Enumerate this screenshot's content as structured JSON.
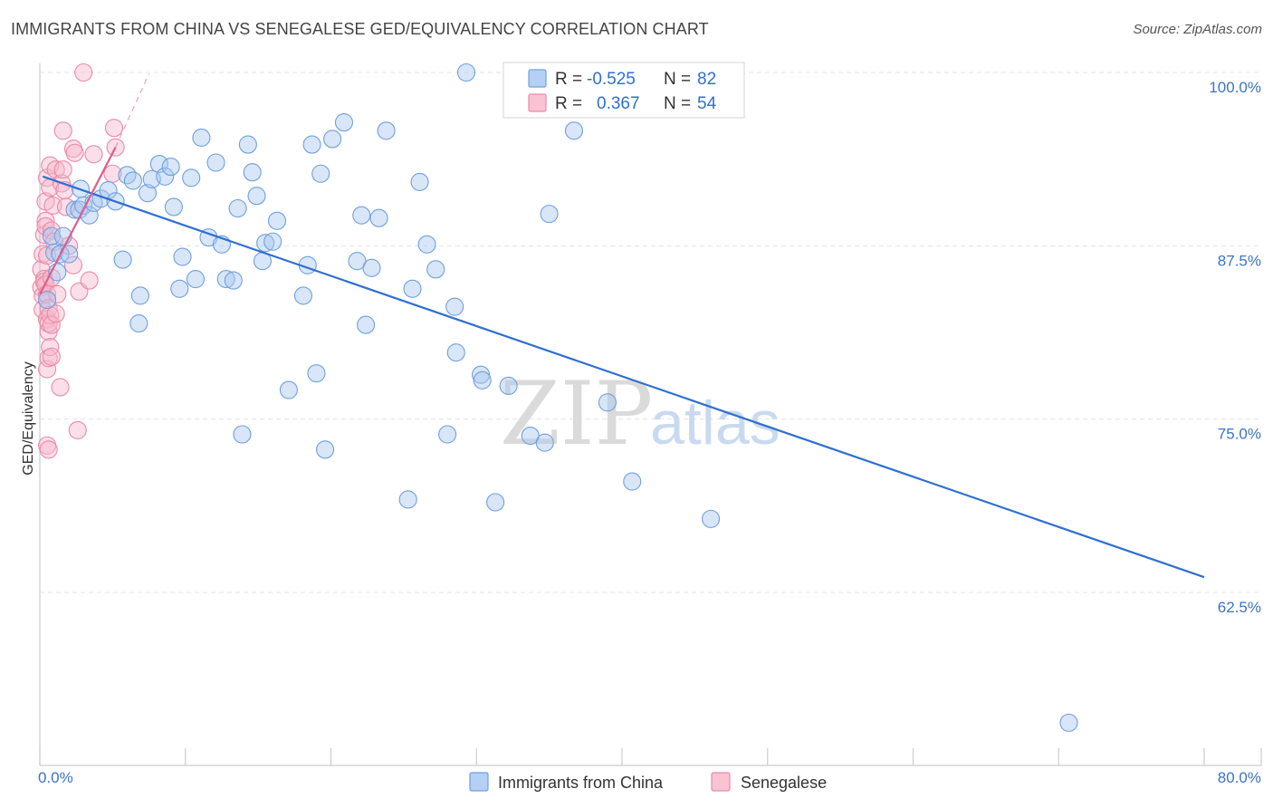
{
  "title": "IMMIGRANTS FROM CHINA VS SENEGALESE GED/EQUIVALENCY CORRELATION CHART",
  "source": "Source: ZipAtlas.com",
  "watermark": {
    "part1": "ZIP",
    "part2": "atlas"
  },
  "colors": {
    "blue_fill": "#a9c8ef",
    "blue_stroke": "#6f9fde",
    "blue_line": "#2f6fd1",
    "pink_fill": "#f6b8cb",
    "pink_stroke": "#e98aa8",
    "pink_line": "#e45b8a",
    "tick_text": "#3b73c8",
    "value_text": "#2f6fd1"
  },
  "legend": {
    "rows": [
      {
        "r_label": "R =",
        "r_value": "-0.525",
        "n_label": "N =",
        "n_value": "82",
        "series": "blue"
      },
      {
        "r_label": "R =",
        "r_value": "0.367",
        "n_label": "N =",
        "n_value": "54",
        "series": "pink"
      }
    ]
  },
  "chart_data": {
    "type": "scatter",
    "title": "IMMIGRANTS FROM CHINA VS SENEGALESE GED/EQUIVALENCY CORRELATION CHART",
    "xlabel": "",
    "ylabel": "GED/Equivalency",
    "xlim": [
      0,
      80
    ],
    "ylim": [
      52,
      101
    ],
    "x_tick_labels": [
      "0.0%",
      "80.0%"
    ],
    "y_ticks": [
      62.5,
      75.0,
      87.5,
      100.0
    ],
    "y_tick_labels": [
      "62.5%",
      "75.0%",
      "87.5%",
      "100.0%"
    ],
    "grid": true,
    "legend_position": "top-center",
    "series": [
      {
        "name": "Immigrants from China",
        "color": "#a9c8ef",
        "r": -0.525,
        "n": 82,
        "trend": {
          "x": [
            0.2,
            80
          ],
          "y": [
            92.5,
            63.6
          ]
        },
        "points": [
          [
            0.5,
            83.6
          ],
          [
            0.8,
            88.2
          ],
          [
            1.0,
            87.0
          ],
          [
            1.2,
            85.6
          ],
          [
            1.4,
            86.9
          ],
          [
            1.6,
            88.2
          ],
          [
            2.0,
            86.9
          ],
          [
            2.4,
            90.1
          ],
          [
            2.7,
            90.1
          ],
          [
            2.8,
            91.6
          ],
          [
            3.0,
            90.4
          ],
          [
            3.4,
            89.7
          ],
          [
            3.7,
            90.6
          ],
          [
            4.2,
            90.9
          ],
          [
            4.7,
            91.5
          ],
          [
            5.2,
            90.7
          ],
          [
            5.7,
            86.5
          ],
          [
            6.0,
            92.6
          ],
          [
            6.4,
            92.2
          ],
          [
            6.8,
            81.9
          ],
          [
            6.9,
            83.9
          ],
          [
            7.4,
            91.3
          ],
          [
            7.7,
            92.3
          ],
          [
            8.2,
            93.4
          ],
          [
            8.6,
            92.5
          ],
          [
            9.0,
            93.2
          ],
          [
            9.2,
            90.3
          ],
          [
            9.6,
            84.4
          ],
          [
            9.8,
            86.7
          ],
          [
            10.4,
            92.4
          ],
          [
            10.7,
            85.1
          ],
          [
            11.1,
            95.3
          ],
          [
            11.6,
            88.1
          ],
          [
            12.1,
            93.5
          ],
          [
            12.5,
            87.6
          ],
          [
            12.8,
            85.1
          ],
          [
            13.3,
            85.0
          ],
          [
            13.6,
            90.2
          ],
          [
            13.9,
            73.9
          ],
          [
            14.3,
            94.8
          ],
          [
            14.6,
            92.8
          ],
          [
            14.9,
            91.1
          ],
          [
            15.3,
            86.4
          ],
          [
            15.5,
            87.7
          ],
          [
            16.0,
            87.8
          ],
          [
            16.3,
            89.3
          ],
          [
            17.1,
            77.1
          ],
          [
            18.1,
            83.9
          ],
          [
            18.4,
            86.1
          ],
          [
            18.7,
            94.8
          ],
          [
            19.0,
            78.3
          ],
          [
            19.3,
            92.7
          ],
          [
            19.6,
            72.8
          ],
          [
            20.1,
            95.2
          ],
          [
            20.9,
            96.4
          ],
          [
            21.8,
            86.4
          ],
          [
            22.1,
            89.7
          ],
          [
            22.4,
            81.8
          ],
          [
            22.8,
            85.9
          ],
          [
            23.3,
            89.5
          ],
          [
            23.8,
            95.8
          ],
          [
            25.3,
            69.2
          ],
          [
            25.6,
            84.4
          ],
          [
            26.1,
            92.1
          ],
          [
            26.6,
            87.6
          ],
          [
            27.2,
            85.8
          ],
          [
            28.0,
            73.9
          ],
          [
            28.5,
            83.1
          ],
          [
            28.6,
            79.8
          ],
          [
            29.3,
            100.0
          ],
          [
            30.3,
            78.2
          ],
          [
            30.4,
            77.8
          ],
          [
            31.3,
            69.0
          ],
          [
            32.2,
            77.4
          ],
          [
            33.7,
            73.8
          ],
          [
            34.7,
            73.3
          ],
          [
            35.0,
            89.8
          ],
          [
            36.7,
            95.8
          ],
          [
            39.0,
            76.2
          ],
          [
            40.7,
            70.5
          ],
          [
            46.1,
            67.8
          ],
          [
            70.7,
            53.1
          ]
        ]
      },
      {
        "name": "Senegalese",
        "color": "#f6b8cb",
        "r": 0.367,
        "n": 54,
        "trend": {
          "x": [
            0.0,
            5.2
          ],
          "y": [
            84.0,
            94.6
          ]
        },
        "trend_extension": {
          "x": [
            5.2,
            7.5
          ],
          "y": [
            94.6,
            99.9
          ]
        },
        "points": [
          [
            0.1,
            84.5
          ],
          [
            0.1,
            85.8
          ],
          [
            0.2,
            83.9
          ],
          [
            0.2,
            82.9
          ],
          [
            0.2,
            86.9
          ],
          [
            0.3,
            85.1
          ],
          [
            0.3,
            88.3
          ],
          [
            0.3,
            84.9
          ],
          [
            0.4,
            89.3
          ],
          [
            0.4,
            88.9
          ],
          [
            0.4,
            90.7
          ],
          [
            0.4,
            84.7
          ],
          [
            0.5,
            84.0
          ],
          [
            0.5,
            82.2
          ],
          [
            0.5,
            86.8
          ],
          [
            0.5,
            92.4
          ],
          [
            0.5,
            78.6
          ],
          [
            0.5,
            73.1
          ],
          [
            0.6,
            81.3
          ],
          [
            0.6,
            79.4
          ],
          [
            0.6,
            72.8
          ],
          [
            0.6,
            81.9
          ],
          [
            0.6,
            83.0
          ],
          [
            0.7,
            82.5
          ],
          [
            0.7,
            80.2
          ],
          [
            0.7,
            91.7
          ],
          [
            0.7,
            93.3
          ],
          [
            0.8,
            79.5
          ],
          [
            0.8,
            85.2
          ],
          [
            0.8,
            81.8
          ],
          [
            0.8,
            88.6
          ],
          [
            0.9,
            90.4
          ],
          [
            1.0,
            87.8
          ],
          [
            1.1,
            93.0
          ],
          [
            1.1,
            82.6
          ],
          [
            1.2,
            84.0
          ],
          [
            1.4,
            77.3
          ],
          [
            1.5,
            92.0
          ],
          [
            1.6,
            95.8
          ],
          [
            1.6,
            93.0
          ],
          [
            1.7,
            91.5
          ],
          [
            1.8,
            90.3
          ],
          [
            2.0,
            87.5
          ],
          [
            2.3,
            86.1
          ],
          [
            2.3,
            94.5
          ],
          [
            2.4,
            94.2
          ],
          [
            2.6,
            74.2
          ],
          [
            2.7,
            84.2
          ],
          [
            3.0,
            100.0
          ],
          [
            3.4,
            85.0
          ],
          [
            3.7,
            94.1
          ],
          [
            5.0,
            92.7
          ],
          [
            5.1,
            96.0
          ],
          [
            5.2,
            94.6
          ]
        ]
      }
    ]
  }
}
